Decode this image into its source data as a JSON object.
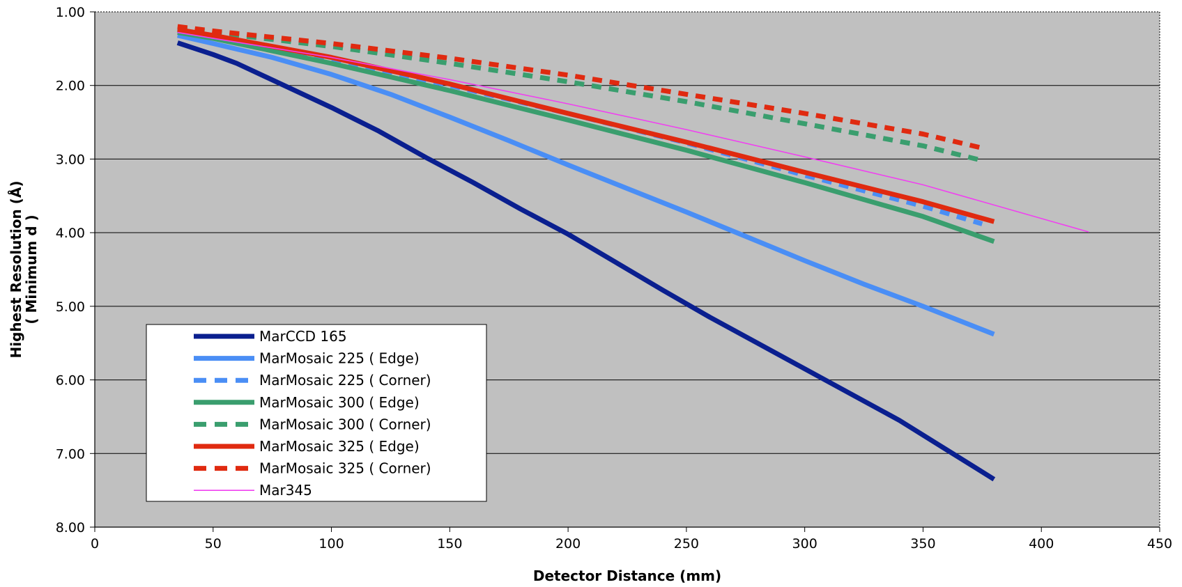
{
  "chart_data": {
    "type": "line",
    "title": "",
    "xlabel": "Detector Distance (mm)",
    "ylabel": "Highest Resolution (Å)",
    "ylabel2": "( Minimum d )",
    "xlim": [
      0,
      450
    ],
    "ylim": [
      1.0,
      8.0
    ],
    "y_inverted": true,
    "grid": "horizontal",
    "legend_placement": "bottom-left",
    "plot_background": "#c0c0c0",
    "x_ticks": [
      "0",
      "50",
      "100",
      "150",
      "200",
      "250",
      "300",
      "350",
      "400",
      "450"
    ],
    "y_ticks": [
      "1.00",
      "2.00",
      "3.00",
      "4.00",
      "5.00",
      "6.00",
      "7.00",
      "8.00"
    ],
    "series": [
      {
        "name": "MarCCD 165",
        "color": "#0a1f8f",
        "style": "solid",
        "weight": "heavy",
        "points": [
          [
            35,
            1.42
          ],
          [
            50,
            1.58
          ],
          [
            60,
            1.7
          ],
          [
            80,
            2.0
          ],
          [
            100,
            2.3
          ],
          [
            120,
            2.62
          ],
          [
            140,
            2.98
          ],
          [
            160,
            3.32
          ],
          [
            180,
            3.68
          ],
          [
            200,
            4.02
          ],
          [
            220,
            4.4
          ],
          [
            240,
            4.78
          ],
          [
            260,
            5.15
          ],
          [
            280,
            5.5
          ],
          [
            300,
            5.85
          ],
          [
            320,
            6.2
          ],
          [
            340,
            6.55
          ],
          [
            360,
            6.95
          ],
          [
            380,
            7.35
          ]
        ]
      },
      {
        "name": "MarMosaic 225 ( Edge)",
        "color": "#4a8ef5",
        "style": "solid",
        "weight": "heavy",
        "points": [
          [
            35,
            1.32
          ],
          [
            50,
            1.43
          ],
          [
            75,
            1.62
          ],
          [
            100,
            1.85
          ],
          [
            125,
            2.12
          ],
          [
            150,
            2.43
          ],
          [
            175,
            2.75
          ],
          [
            200,
            3.08
          ],
          [
            225,
            3.4
          ],
          [
            250,
            3.72
          ],
          [
            275,
            4.05
          ],
          [
            300,
            4.38
          ],
          [
            325,
            4.7
          ],
          [
            350,
            5.0
          ],
          [
            380,
            5.38
          ]
        ]
      },
      {
        "name": "MarMosaic 225 ( Corner)",
        "color": "#4a8ef5",
        "style": "dash",
        "weight": "heavy",
        "points": [
          [
            35,
            1.25
          ],
          [
            50,
            1.34
          ],
          [
            100,
            1.65
          ],
          [
            150,
            2.0
          ],
          [
            200,
            2.38
          ],
          [
            250,
            2.78
          ],
          [
            300,
            3.22
          ],
          [
            350,
            3.64
          ],
          [
            375,
            3.88
          ]
        ]
      },
      {
        "name": "MarMosaic 300 ( Edge)",
        "color": "#3a9e6e",
        "style": "solid",
        "weight": "heavy",
        "points": [
          [
            35,
            1.28
          ],
          [
            50,
            1.36
          ],
          [
            100,
            1.7
          ],
          [
            150,
            2.07
          ],
          [
            200,
            2.47
          ],
          [
            250,
            2.88
          ],
          [
            300,
            3.32
          ],
          [
            350,
            3.78
          ],
          [
            380,
            4.12
          ]
        ]
      },
      {
        "name": "MarMosaic 300 ( Corner)",
        "color": "#3a9e6e",
        "style": "dash",
        "weight": "heavy",
        "points": [
          [
            35,
            1.22
          ],
          [
            50,
            1.28
          ],
          [
            100,
            1.47
          ],
          [
            150,
            1.7
          ],
          [
            200,
            1.95
          ],
          [
            250,
            2.22
          ],
          [
            300,
            2.52
          ],
          [
            350,
            2.82
          ],
          [
            375,
            3.02
          ]
        ]
      },
      {
        "name": "MarMosaic 325 ( Edge)",
        "color": "#e02a10",
        "style": "solid",
        "weight": "heavy",
        "points": [
          [
            35,
            1.24
          ],
          [
            50,
            1.32
          ],
          [
            100,
            1.62
          ],
          [
            150,
            1.98
          ],
          [
            200,
            2.38
          ],
          [
            250,
            2.77
          ],
          [
            300,
            3.18
          ],
          [
            350,
            3.58
          ],
          [
            380,
            3.85
          ]
        ]
      },
      {
        "name": "MarMosaic 325 ( Corner)",
        "color": "#e02a10",
        "style": "dash",
        "weight": "heavy",
        "points": [
          [
            35,
            1.2
          ],
          [
            50,
            1.26
          ],
          [
            100,
            1.43
          ],
          [
            150,
            1.63
          ],
          [
            200,
            1.86
          ],
          [
            250,
            2.12
          ],
          [
            300,
            2.38
          ],
          [
            350,
            2.66
          ],
          [
            375,
            2.85
          ]
        ]
      },
      {
        "name": "Mar345",
        "color": "#f040f0",
        "style": "solid",
        "weight": "thin",
        "points": [
          [
            35,
            1.28
          ],
          [
            50,
            1.36
          ],
          [
            100,
            1.62
          ],
          [
            150,
            1.92
          ],
          [
            200,
            2.25
          ],
          [
            250,
            2.6
          ],
          [
            300,
            2.97
          ],
          [
            350,
            3.35
          ],
          [
            420,
            3.99
          ]
        ]
      }
    ]
  }
}
